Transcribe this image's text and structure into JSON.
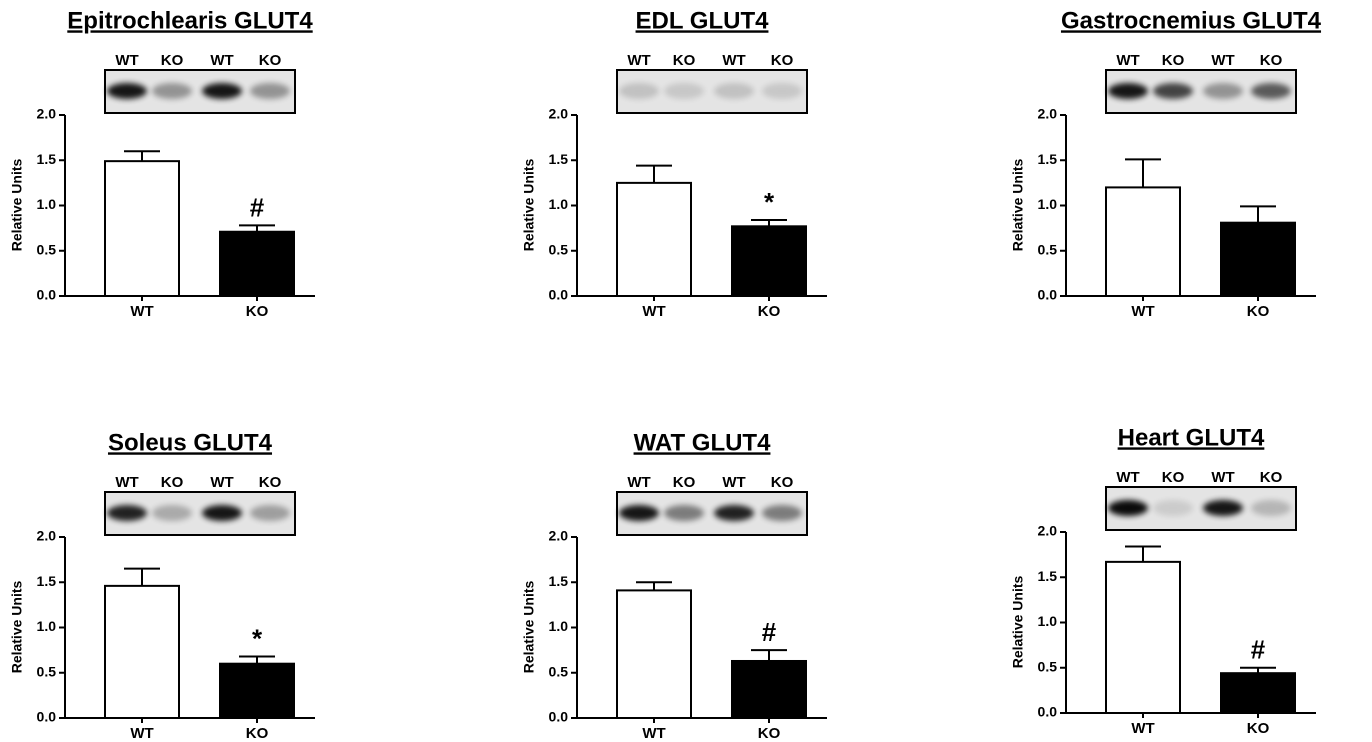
{
  "chart_data": [
    {
      "type": "bar",
      "title": "Epitrochlearis GLUT4",
      "blot_lanes": [
        "WT",
        "KO",
        "WT",
        "KO"
      ],
      "ylabel": "Relative Units",
      "categories": [
        "WT",
        "KO"
      ],
      "values": [
        1.49,
        0.71
      ],
      "errors": [
        0.11,
        0.07
      ],
      "colors": [
        "#ffffff",
        "#000000"
      ],
      "annotation": "#",
      "ylim": [
        0,
        2
      ],
      "yticks": [
        {
          "value": 0,
          "label": "0.0"
        },
        {
          "value": 0.5,
          "label": "0.5"
        },
        {
          "value": 1,
          "label": "1.0"
        },
        {
          "value": 1.5,
          "label": "1.5"
        },
        {
          "value": 2,
          "label": "2.0"
        }
      ]
    },
    {
      "type": "bar",
      "title": "EDL GLUT4",
      "blot_lanes": [
        "WT",
        "KO",
        "WT",
        "KO"
      ],
      "ylabel": "Relative Units",
      "categories": [
        "WT",
        "KO"
      ],
      "values": [
        1.25,
        0.77
      ],
      "errors": [
        0.19,
        0.07
      ],
      "colors": [
        "#ffffff",
        "#000000"
      ],
      "annotation": "*",
      "ylim": [
        0,
        2
      ],
      "yticks": [
        {
          "value": 0,
          "label": "0.0"
        },
        {
          "value": 0.5,
          "label": "0.5"
        },
        {
          "value": 1,
          "label": "1.0"
        },
        {
          "value": 1.5,
          "label": "1.5"
        },
        {
          "value": 2,
          "label": "2.0"
        }
      ]
    },
    {
      "type": "bar",
      "title": "Gastrocnemius GLUT4",
      "blot_lanes": [
        "WT",
        "KO",
        "WT",
        "KO"
      ],
      "ylabel": "Relative Units",
      "categories": [
        "WT",
        "KO"
      ],
      "values": [
        1.2,
        0.81
      ],
      "errors": [
        0.31,
        0.18
      ],
      "colors": [
        "#ffffff",
        "#000000"
      ],
      "ylim": [
        0,
        2
      ],
      "yticks": [
        {
          "value": 0,
          "label": "0.0"
        },
        {
          "value": 0.5,
          "label": "0.5"
        },
        {
          "value": 1,
          "label": "1.0"
        },
        {
          "value": 1.5,
          "label": "1.5"
        },
        {
          "value": 2,
          "label": "2.0"
        }
      ]
    },
    {
      "type": "bar",
      "title": "Soleus GLUT4",
      "blot_lanes": [
        "WT",
        "KO",
        "WT",
        "KO"
      ],
      "ylabel": "Relative Units",
      "categories": [
        "WT",
        "KO"
      ],
      "values": [
        1.46,
        0.6
      ],
      "errors": [
        0.19,
        0.08
      ],
      "colors": [
        "#ffffff",
        "#000000"
      ],
      "annotation": "*",
      "ylim": [
        0,
        2
      ],
      "yticks": [
        {
          "value": 0,
          "label": "0.0"
        },
        {
          "value": 0.5,
          "label": "0.5"
        },
        {
          "value": 1,
          "label": "1.0"
        },
        {
          "value": 1.5,
          "label": "1.5"
        },
        {
          "value": 2,
          "label": "2.0"
        }
      ]
    },
    {
      "type": "bar",
      "title": "WAT GLUT4",
      "blot_lanes": [
        "WT",
        "KO",
        "WT",
        "KO"
      ],
      "ylabel": "Relative Units",
      "categories": [
        "WT",
        "KO"
      ],
      "values": [
        1.41,
        0.63
      ],
      "errors": [
        0.09,
        0.12
      ],
      "colors": [
        "#ffffff",
        "#000000"
      ],
      "annotation": "#",
      "ylim": [
        0,
        2
      ],
      "yticks": [
        {
          "value": 0,
          "label": "0.0"
        },
        {
          "value": 0.5,
          "label": "0.5"
        },
        {
          "value": 1,
          "label": "1.0"
        },
        {
          "value": 1.5,
          "label": "1.5"
        },
        {
          "value": 2,
          "label": "2.0"
        }
      ]
    },
    {
      "type": "bar",
      "title": "Heart GLUT4",
      "blot_lanes": [
        "WT",
        "KO",
        "WT",
        "KO"
      ],
      "ylabel": "Relative Units",
      "categories": [
        "WT",
        "KO"
      ],
      "values": [
        1.67,
        0.44
      ],
      "errors": [
        0.17,
        0.06
      ],
      "colors": [
        "#ffffff",
        "#000000"
      ],
      "annotation": "#",
      "ylim": [
        0,
        2
      ],
      "yticks": [
        {
          "value": 0,
          "label": "0.0"
        },
        {
          "value": 0.5,
          "label": "0.5"
        },
        {
          "value": 1,
          "label": "1.0"
        },
        {
          "value": 1.5,
          "label": "1.5"
        },
        {
          "value": 2,
          "label": "2.0"
        }
      ]
    }
  ]
}
